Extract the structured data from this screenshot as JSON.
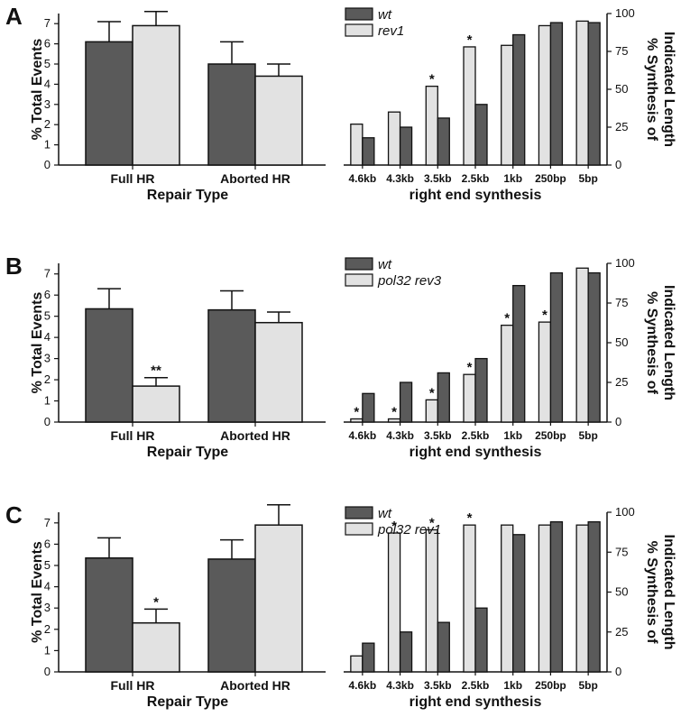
{
  "colors": {
    "wt": "#5a5a5a",
    "mutant": "#e2e2e2",
    "axis": "#111111",
    "errorbar": "#111111"
  },
  "chart_data": [
    {
      "panel": "A",
      "side": "left",
      "type": "bar",
      "categories": [
        "Full HR",
        "Aborted HR"
      ],
      "series": [
        {
          "key": "wt",
          "values": [
            6.1,
            5.0
          ],
          "errors": [
            1.0,
            1.1
          ]
        },
        {
          "key": "mutant",
          "values": [
            6.9,
            4.4
          ],
          "errors": [
            0.7,
            0.6
          ]
        }
      ],
      "significance": [
        null,
        null
      ],
      "ylim": [
        0,
        7.5
      ],
      "yticks": [
        "0",
        "1",
        "2",
        "3",
        "4",
        "5",
        "6",
        "7"
      ],
      "xlabel": "Repair Type",
      "ylabel": "% Total Events"
    },
    {
      "panel": "A",
      "side": "right",
      "type": "bar",
      "categories": [
        "4.6kb",
        "4.3kb",
        "3.5kb",
        "2.5kb",
        "1kb",
        "250bp",
        "5bp"
      ],
      "series": [
        {
          "key": "mutant",
          "name": "rev1",
          "values": [
            27,
            35,
            52,
            78,
            79,
            92,
            95
          ]
        },
        {
          "key": "wt",
          "name": "wt",
          "values": [
            18,
            25,
            31,
            40,
            86,
            94,
            94
          ]
        }
      ],
      "significance": [
        "",
        "",
        "*",
        "*",
        "",
        "",
        ""
      ],
      "ylim": [
        0,
        100
      ],
      "yticks": [
        "0",
        "25",
        "50",
        "75",
        "100"
      ],
      "xlabel": "right end synthesis",
      "ylabel": [
        "% Synthesis of",
        "Indicated Length"
      ],
      "legend": [
        {
          "key": "wt",
          "label": "wt"
        },
        {
          "key": "mutant",
          "label": "rev1"
        }
      ]
    },
    {
      "panel": "B",
      "side": "left",
      "type": "bar",
      "categories": [
        "Full HR",
        "Aborted HR"
      ],
      "series": [
        {
          "key": "wt",
          "values": [
            5.35,
            5.3
          ],
          "errors": [
            0.95,
            0.9
          ]
        },
        {
          "key": "mutant",
          "values": [
            1.7,
            4.7
          ],
          "errors": [
            0.4,
            0.5
          ]
        }
      ],
      "significance": [
        "**",
        null
      ],
      "ylim": [
        0,
        7.5
      ],
      "yticks": [
        "0",
        "1",
        "2",
        "3",
        "4",
        "5",
        "6",
        "7"
      ],
      "xlabel": "Repair Type",
      "ylabel": "% Total Events"
    },
    {
      "panel": "B",
      "side": "right",
      "type": "bar",
      "categories": [
        "4.6kb",
        "4.3kb",
        "3.5kb",
        "2.5kb",
        "1kb",
        "250bp",
        "5bp"
      ],
      "series": [
        {
          "key": "mutant",
          "name": "pol32 rev3",
          "values": [
            2,
            2,
            14,
            30,
            61,
            63,
            97
          ]
        },
        {
          "key": "wt",
          "name": "wt",
          "values": [
            18,
            25,
            31,
            40,
            86,
            94,
            94
          ]
        }
      ],
      "significance": [
        "*",
        "*",
        "*",
        "*",
        "*",
        "*",
        ""
      ],
      "ylim": [
        0,
        100
      ],
      "yticks": [
        "0",
        "25",
        "50",
        "75",
        "100"
      ],
      "xlabel": "right end synthesis",
      "ylabel": [
        "% Synthesis of",
        "Indicated Length"
      ],
      "legend": [
        {
          "key": "wt",
          "label": "wt"
        },
        {
          "key": "mutant",
          "label": "pol32 rev3"
        }
      ]
    },
    {
      "panel": "C",
      "side": "left",
      "type": "bar",
      "categories": [
        "Full HR",
        "Aborted HR"
      ],
      "series": [
        {
          "key": "wt",
          "values": [
            5.35,
            5.3
          ],
          "errors": [
            0.95,
            0.9
          ]
        },
        {
          "key": "mutant",
          "values": [
            2.3,
            6.9
          ],
          "errors": [
            0.65,
            0.95
          ]
        }
      ],
      "significance": [
        "*",
        null
      ],
      "ylim": [
        0,
        7.5
      ],
      "yticks": [
        "0",
        "1",
        "2",
        "3",
        "4",
        "5",
        "6",
        "7"
      ],
      "xlabel": "Repair Type",
      "ylabel": "% Total Events"
    },
    {
      "panel": "C",
      "side": "right",
      "type": "bar",
      "categories": [
        "4.6kb",
        "4.3kb",
        "3.5kb",
        "2.5kb",
        "1kb",
        "250bp",
        "5bp"
      ],
      "series": [
        {
          "key": "mutant",
          "name": "pol32 rev1",
          "values": [
            10,
            87,
            89,
            92,
            92,
            92,
            92
          ]
        },
        {
          "key": "wt",
          "name": "wt",
          "values": [
            18,
            25,
            31,
            40,
            86,
            94,
            94
          ]
        }
      ],
      "significance": [
        "",
        "*",
        "*",
        "*",
        "",
        "",
        ""
      ],
      "ylim": [
        0,
        100
      ],
      "yticks": [
        "0",
        "25",
        "50",
        "75",
        "100"
      ],
      "xlabel": "right end synthesis",
      "ylabel": [
        "% Synthesis of",
        "Indicated Length"
      ],
      "legend": [
        {
          "key": "wt",
          "label": "wt"
        },
        {
          "key": "mutant",
          "label": "pol32 rev1"
        }
      ]
    }
  ]
}
